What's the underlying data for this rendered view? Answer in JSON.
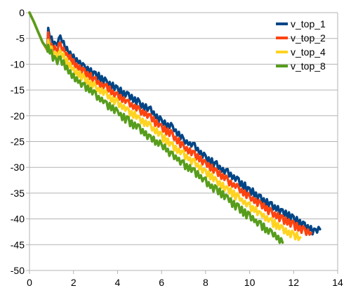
{
  "chart_data": {
    "type": "line",
    "title": "",
    "xlabel": "",
    "ylabel": "",
    "xlim": [
      0,
      14
    ],
    "ylim": [
      -50,
      0
    ],
    "x_ticks": [
      0,
      2,
      4,
      6,
      8,
      10,
      12,
      14
    ],
    "y_ticks": [
      0,
      -5,
      -10,
      -15,
      -20,
      -25,
      -30,
      -35,
      -40,
      -45,
      -50
    ],
    "grid": "horizontal",
    "legend_position": "top-right",
    "series": [
      {
        "name": "v_top_1",
        "color": "#004586",
        "points": [
          [
            0,
            0
          ],
          [
            0.2,
            -1.8
          ],
          [
            0.4,
            -3.8
          ],
          [
            0.6,
            -5.8
          ],
          [
            0.8,
            -7.6
          ],
          [
            0.85,
            -3.3
          ],
          [
            1.0,
            -5.4
          ],
          [
            1.2,
            -6.5
          ],
          [
            1.4,
            -4.8
          ],
          [
            1.7,
            -7.2
          ],
          [
            2.0,
            -8.6
          ],
          [
            2.5,
            -10.6
          ],
          [
            3.0,
            -12.0
          ],
          [
            3.5,
            -13.6
          ],
          [
            4.0,
            -14.8
          ],
          [
            4.5,
            -16.3
          ],
          [
            5.0,
            -17.6
          ],
          [
            5.5,
            -19.0
          ],
          [
            6.0,
            -21.2
          ],
          [
            6.5,
            -22.3
          ],
          [
            7.0,
            -24.8
          ],
          [
            7.5,
            -26.0
          ],
          [
            8.0,
            -28.0
          ],
          [
            8.5,
            -29.6
          ],
          [
            9.0,
            -31.1
          ],
          [
            9.5,
            -32.7
          ],
          [
            10.0,
            -34.4
          ],
          [
            10.5,
            -36.1
          ],
          [
            11.0,
            -37.5
          ],
          [
            11.5,
            -38.8
          ],
          [
            12.0,
            -40.0
          ],
          [
            12.5,
            -41.4
          ],
          [
            13.0,
            -42.5
          ],
          [
            13.2,
            -42.0
          ]
        ]
      },
      {
        "name": "v_top_2",
        "color": "#ff420e",
        "points": [
          [
            0,
            0
          ],
          [
            0.2,
            -1.8
          ],
          [
            0.4,
            -3.8
          ],
          [
            0.6,
            -5.8
          ],
          [
            0.8,
            -7.6
          ],
          [
            0.85,
            -4.5
          ],
          [
            1.0,
            -6.5
          ],
          [
            1.2,
            -7.5
          ],
          [
            1.4,
            -6.2
          ],
          [
            1.7,
            -8.2
          ],
          [
            2.0,
            -9.7
          ],
          [
            2.5,
            -11.6
          ],
          [
            3.0,
            -13.2
          ],
          [
            3.5,
            -14.6
          ],
          [
            4.0,
            -16.1
          ],
          [
            4.5,
            -17.5
          ],
          [
            5.0,
            -18.9
          ],
          [
            5.5,
            -20.4
          ],
          [
            6.0,
            -22.3
          ],
          [
            6.5,
            -23.8
          ],
          [
            7.0,
            -26.0
          ],
          [
            7.5,
            -27.6
          ],
          [
            8.0,
            -29.3
          ],
          [
            8.5,
            -30.9
          ],
          [
            9.0,
            -32.5
          ],
          [
            9.5,
            -34.1
          ],
          [
            10.0,
            -35.8
          ],
          [
            10.5,
            -37.3
          ],
          [
            11.0,
            -38.8
          ],
          [
            11.5,
            -40.0
          ],
          [
            12.0,
            -41.2
          ],
          [
            12.5,
            -42.3
          ],
          [
            12.8,
            -42.7
          ]
        ]
      },
      {
        "name": "v_top_4",
        "color": "#ffd320",
        "points": [
          [
            0,
            0
          ],
          [
            0.2,
            -1.8
          ],
          [
            0.4,
            -3.8
          ],
          [
            0.6,
            -5.8
          ],
          [
            0.8,
            -7.6
          ],
          [
            0.85,
            -5.8
          ],
          [
            1.0,
            -7.2
          ],
          [
            1.2,
            -8.5
          ],
          [
            1.4,
            -7.8
          ],
          [
            1.7,
            -9.6
          ],
          [
            2.0,
            -11.0
          ],
          [
            2.5,
            -12.9
          ],
          [
            3.0,
            -14.5
          ],
          [
            3.5,
            -16.0
          ],
          [
            4.0,
            -17.6
          ],
          [
            4.5,
            -19.1
          ],
          [
            5.0,
            -20.6
          ],
          [
            5.5,
            -22.1
          ],
          [
            6.0,
            -24.0
          ],
          [
            6.5,
            -25.7
          ],
          [
            7.0,
            -27.5
          ],
          [
            7.5,
            -29.2
          ],
          [
            8.0,
            -31.0
          ],
          [
            8.5,
            -32.7
          ],
          [
            9.0,
            -34.3
          ],
          [
            9.5,
            -35.9
          ],
          [
            10.0,
            -37.6
          ],
          [
            10.5,
            -39.1
          ],
          [
            11.0,
            -40.6
          ],
          [
            11.5,
            -42.0
          ],
          [
            12.0,
            -43.1
          ],
          [
            12.3,
            -43.6
          ]
        ]
      },
      {
        "name": "v_top_8",
        "color": "#579d1c",
        "points": [
          [
            0,
            0
          ],
          [
            0.2,
            -1.8
          ],
          [
            0.4,
            -3.8
          ],
          [
            0.6,
            -5.8
          ],
          [
            0.8,
            -7.6
          ],
          [
            0.85,
            -6.6
          ],
          [
            1.0,
            -8.0
          ],
          [
            1.2,
            -9.5
          ],
          [
            1.4,
            -9.0
          ],
          [
            1.7,
            -10.9
          ],
          [
            2.0,
            -12.4
          ],
          [
            2.5,
            -14.3
          ],
          [
            3.0,
            -16.0
          ],
          [
            3.5,
            -17.7
          ],
          [
            4.0,
            -19.3
          ],
          [
            4.5,
            -21.0
          ],
          [
            5.0,
            -22.6
          ],
          [
            5.5,
            -24.2
          ],
          [
            6.0,
            -25.8
          ],
          [
            6.5,
            -27.6
          ],
          [
            7.0,
            -29.3
          ],
          [
            7.5,
            -31.0
          ],
          [
            8.0,
            -32.7
          ],
          [
            8.5,
            -34.4
          ],
          [
            9.0,
            -36.1
          ],
          [
            9.5,
            -37.9
          ],
          [
            10.0,
            -39.6
          ],
          [
            10.5,
            -41.2
          ],
          [
            11.0,
            -42.8
          ],
          [
            11.3,
            -43.8
          ],
          [
            11.5,
            -44.6
          ]
        ]
      }
    ]
  }
}
